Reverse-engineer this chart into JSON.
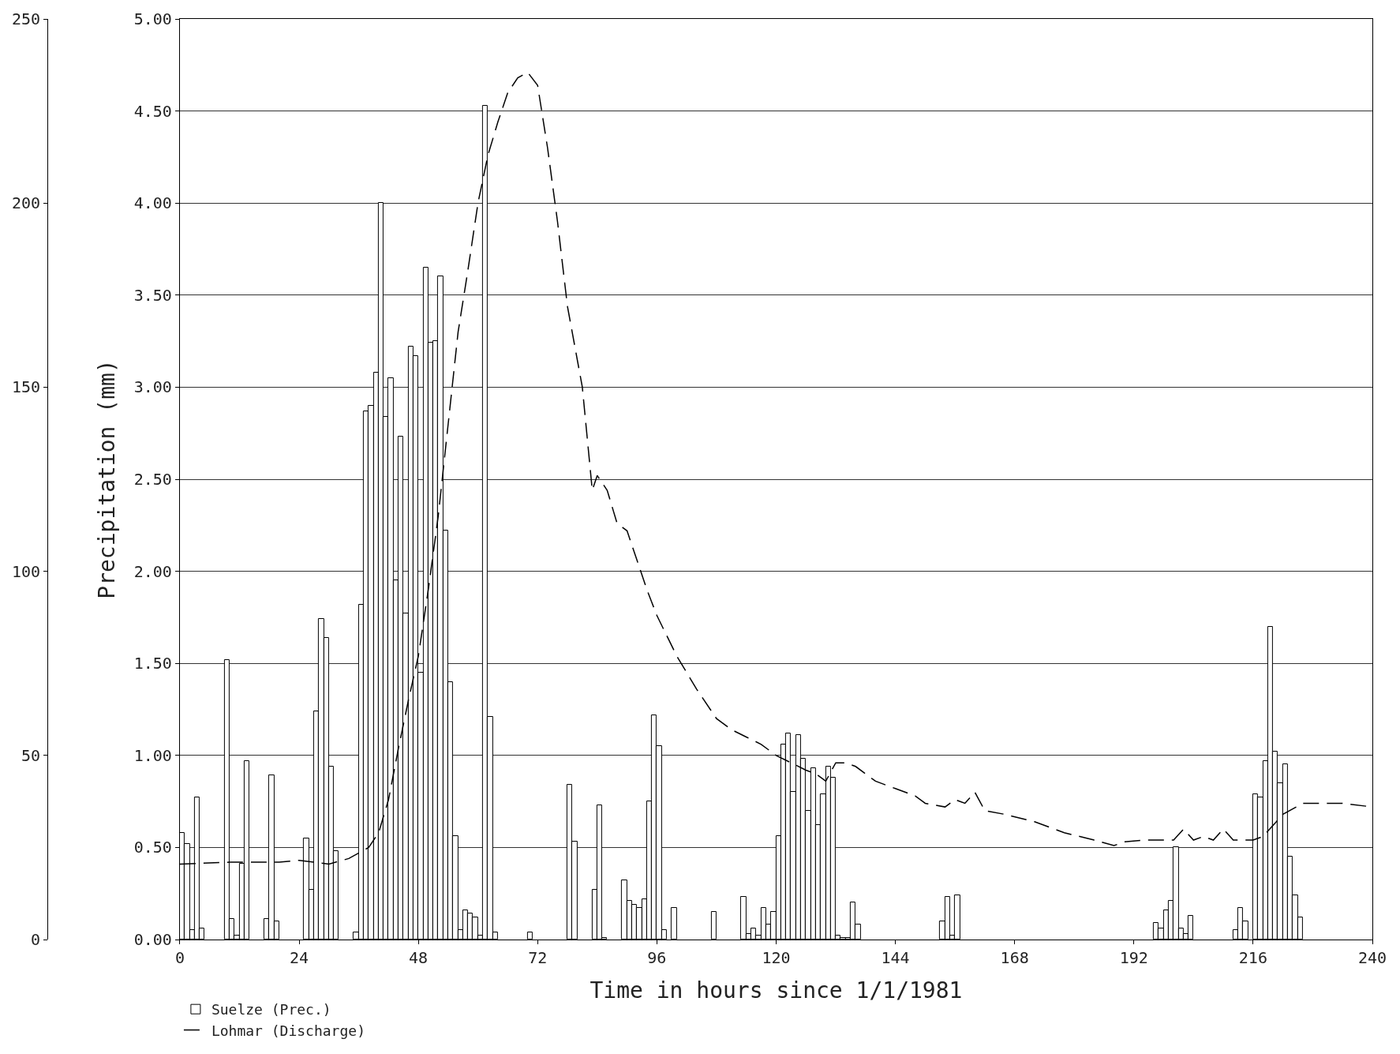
{
  "chart_data": {
    "type": "bar",
    "xlabel": "Time in hours since 1/1/1981",
    "ylabel": "Precipitation (mm)",
    "xlim": [
      0,
      240
    ],
    "xticks": [
      0,
      24,
      48,
      72,
      96,
      120,
      144,
      168,
      192,
      216,
      240
    ],
    "ylim": [
      0,
      5
    ],
    "yticks": [
      {
        "value": 0,
        "label": "0.00"
      },
      {
        "value": 0.5,
        "label": "0.50"
      },
      {
        "value": 1,
        "label": "1.00"
      },
      {
        "value": 1.5,
        "label": "1.50"
      },
      {
        "value": 2,
        "label": "2.00"
      },
      {
        "value": 2.5,
        "label": "2.50"
      },
      {
        "value": 3,
        "label": "3.00"
      },
      {
        "value": 3.5,
        "label": "3.50"
      },
      {
        "value": 4,
        "label": "4.00"
      },
      {
        "value": 4.5,
        "label": "4.50"
      },
      {
        "value": 5,
        "label": "5.00"
      }
    ],
    "y2lim": [
      0,
      250
    ],
    "y2ticks": [
      0,
      50,
      100,
      150,
      200,
      250
    ],
    "grid": "y",
    "legend": "bottom left",
    "series": [
      {
        "name": "Suelze (Prec.)",
        "color": "#ffffff",
        "x": [
          0,
          1,
          2,
          3,
          4,
          9,
          10,
          11,
          12,
          13,
          17,
          18,
          19,
          25,
          26,
          27,
          28,
          29,
          30,
          31,
          35,
          36,
          37,
          38,
          39,
          40,
          41,
          42,
          43,
          44,
          45,
          46,
          47,
          48,
          49,
          50,
          51,
          52,
          53,
          54,
          55,
          56,
          57,
          58,
          59,
          60,
          61,
          62,
          63,
          70,
          78,
          79,
          83,
          84,
          85,
          89,
          90,
          91,
          92,
          93,
          94,
          95,
          96,
          97,
          99,
          107,
          113,
          114,
          115,
          116,
          117,
          118,
          119,
          120,
          121,
          122,
          123,
          124,
          125,
          126,
          127,
          128,
          129,
          130,
          131,
          132,
          133,
          134,
          135,
          136,
          153,
          154,
          155,
          156,
          196,
          197,
          198,
          199,
          200,
          201,
          202,
          203,
          212,
          213,
          214,
          216,
          217,
          218,
          219,
          220,
          221,
          222,
          223,
          224,
          225
        ],
        "values": [
          0.58,
          0.52,
          0.05,
          0.77,
          0.06,
          1.52,
          0.11,
          0.02,
          0.41,
          0.97,
          0.11,
          0.89,
          0.1,
          0.55,
          0.27,
          1.24,
          1.74,
          1.64,
          0.94,
          0.48,
          0.04,
          1.82,
          2.87,
          2.9,
          3.08,
          4.0,
          2.84,
          3.05,
          1.95,
          2.73,
          1.77,
          3.22,
          3.17,
          1.45,
          3.65,
          3.24,
          3.25,
          3.6,
          2.22,
          1.4,
          0.56,
          0.05,
          0.16,
          0.14,
          0.12,
          0.02,
          4.53,
          1.21,
          0.04,
          0.04,
          0.84,
          0.53,
          0.27,
          0.73,
          0.01,
          0.32,
          0.21,
          0.19,
          0.17,
          0.22,
          0.75,
          1.22,
          1.05,
          0.05,
          0.17,
          0.15,
          0.23,
          0.03,
          0.06,
          0.02,
          0.17,
          0.08,
          0.15,
          0.56,
          1.06,
          1.12,
          0.8,
          1.11,
          0.98,
          0.7,
          0.93,
          0.62,
          0.79,
          0.94,
          0.88,
          0.02,
          0.01,
          0.01,
          0.2,
          0.08,
          0.1,
          0.23,
          0.02,
          0.24,
          0.09,
          0.06,
          0.16,
          0.21,
          0.5,
          0.06,
          0.03,
          0.13,
          0.05,
          0.17,
          0.1,
          0.79,
          0.77,
          0.97,
          1.7,
          1.02,
          0.85,
          0.95,
          0.45,
          0.24,
          0.12
        ]
      },
      {
        "name": "Lohmar (Discharge)",
        "type": "line",
        "axis": "y2",
        "color": "#000000",
        "line_style": "dashed",
        "x": [
          0,
          10,
          20,
          24,
          30,
          34,
          38,
          40,
          42,
          44,
          46,
          48,
          50,
          52,
          54,
          56,
          58,
          60,
          62,
          64,
          66,
          68,
          70,
          72,
          74,
          76,
          78,
          81,
          83,
          84,
          86,
          88,
          90,
          92,
          94,
          96,
          100,
          104,
          108,
          111,
          114,
          117,
          120,
          126,
          128,
          130,
          132,
          134,
          136,
          140,
          144,
          148,
          150,
          154,
          156,
          158,
          160,
          162,
          166,
          172,
          178,
          184,
          188,
          190,
          194,
          200,
          202,
          204,
          206,
          208,
          210,
          212,
          216,
          218,
          222,
          226,
          234,
          240
        ],
        "values": [
          20.5,
          21,
          21,
          21.5,
          20.5,
          22,
          25,
          29,
          38,
          52,
          65,
          77,
          95,
          115,
          140,
          165,
          182,
          200,
          213,
          222,
          230,
          234,
          235.5,
          232,
          215,
          195,
          172,
          150,
          122,
          126,
          122,
          113,
          111,
          103,
          95,
          88,
          77,
          68,
          60,
          57,
          55,
          53,
          50,
          46,
          45,
          43,
          48,
          48,
          47,
          43,
          41,
          39,
          37,
          36,
          38,
          37,
          40,
          35,
          34,
          32,
          29,
          27,
          25.5,
          26.5,
          27,
          27,
          30,
          27,
          28,
          27,
          30,
          27,
          27,
          28,
          34,
          37,
          37,
          36
        ]
      }
    ]
  }
}
